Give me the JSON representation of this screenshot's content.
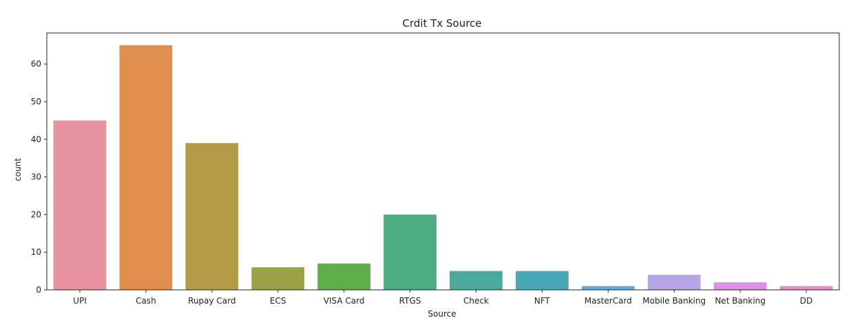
{
  "chart_data": {
    "type": "bar",
    "title": "Crdit Tx Source",
    "xlabel": "Source",
    "ylabel": "count",
    "categories": [
      "UPI",
      "Cash",
      "Rupay Card",
      "ECS",
      "VISA Card",
      "RTGS",
      "Check",
      "NFT",
      "MasterCard",
      "Mobile Banking",
      "Net Banking",
      "DD"
    ],
    "values": [
      45,
      65,
      39,
      6,
      7,
      20,
      5,
      5,
      1,
      4,
      2,
      1
    ],
    "colors": [
      "#e8919f",
      "#e08f4e",
      "#b49b45",
      "#99a245",
      "#5fad48",
      "#4cae80",
      "#4aaa9c",
      "#4aa7b8",
      "#6aa6dc",
      "#b7a5ea",
      "#dd8ee8",
      "#e989c7"
    ],
    "ylim": [
      0,
      68.25
    ],
    "yticks": [
      0,
      10,
      20,
      30,
      40,
      50,
      60
    ],
    "grid": false
  }
}
